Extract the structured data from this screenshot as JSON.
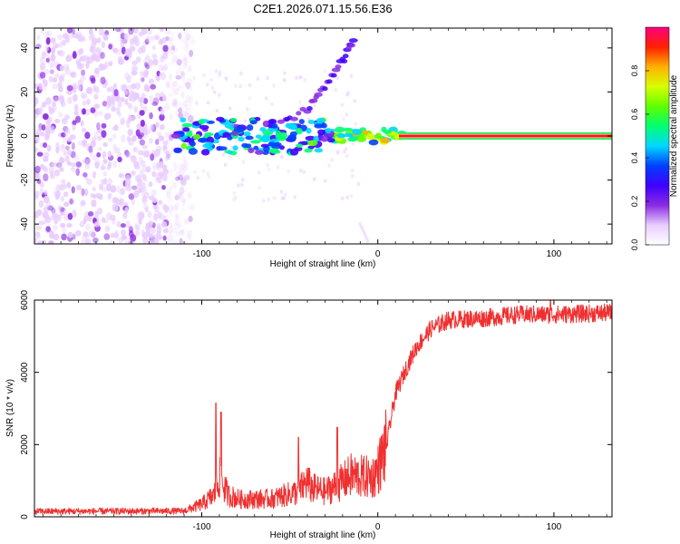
{
  "title": "C2E1.2026.071.15.56.E36",
  "chart_data": [
    {
      "type": "heatmap",
      "name": "spectrogram",
      "xlabel": "Height of straight line (km)",
      "ylabel": "Frequency (Hz)",
      "xlim": [
        -195,
        133
      ],
      "ylim": [
        -49,
        49
      ],
      "xticks": [
        -100,
        0,
        100
      ],
      "xtick_labels": [
        "-100",
        "0",
        "100"
      ],
      "yticks": [
        -40,
        -20,
        0,
        20,
        40
      ],
      "ytick_labels": [
        "-40",
        "-20",
        "0",
        "20",
        "40"
      ],
      "colorbar": {
        "label": "Normalized spectral amplitude",
        "range": [
          0,
          1
        ],
        "ticks": [
          0,
          0.2,
          0.4,
          0.6,
          0.8
        ],
        "tick_labels": [
          "0.0",
          "0.2",
          "0.4",
          "0.6",
          "0.8"
        ],
        "colormap": [
          "#ffffff",
          "#e8ccff",
          "#8a2be2",
          "#3f00ff",
          "#0040ff",
          "#00d8ff",
          "#00ff70",
          "#60ff00",
          "#d8ff00",
          "#ffb000",
          "#ff2000",
          "#ff0080"
        ]
      },
      "features": [
        {
          "name": "noise-region",
          "x_range": [
            -195,
            -105
          ],
          "y_range": [
            -49,
            49
          ],
          "amplitude": 0.12
        },
        {
          "name": "carrier-line",
          "x_range": [
            -115,
            133
          ],
          "y": 0,
          "amplitude": 1.0
        },
        {
          "name": "rising-branch",
          "points": [
            [
              -60,
              3
            ],
            [
              -40,
              12
            ],
            [
              -30,
              22
            ],
            [
              -20,
              34
            ],
            [
              -13,
              44
            ]
          ]
        },
        {
          "name": "falling-branch",
          "points": [
            [
              -10,
              -40
            ],
            [
              -5,
              -49
            ]
          ]
        }
      ]
    },
    {
      "type": "line",
      "name": "snr",
      "xlabel": "Height of straight line (km)",
      "ylabel": "SNR (10 * v/v)",
      "xlim": [
        -195,
        133
      ],
      "ylim": [
        0,
        6000
      ],
      "xticks": [
        -100,
        0,
        100
      ],
      "xtick_labels": [
        "-100",
        "0",
        "100"
      ],
      "yticks": [
        0,
        2000,
        4000,
        6000
      ],
      "ytick_labels": [
        "0",
        "2000",
        "4000",
        "6000"
      ],
      "line_color": "#f03030",
      "trend": {
        "x": [
          -195,
          -110,
          -100,
          -93,
          -90,
          -85,
          -78,
          -60,
          -45,
          -40,
          -38,
          -30,
          -22,
          -15,
          -8,
          -3,
          0,
          5,
          10,
          16,
          22,
          30,
          40,
          60,
          80,
          100,
          133
        ],
        "y": [
          150,
          160,
          350,
          600,
          1100,
          600,
          480,
          500,
          700,
          1000,
          800,
          700,
          900,
          1150,
          1100,
          1100,
          1300,
          2000,
          3400,
          4100,
          4700,
          5200,
          5450,
          5500,
          5600,
          5600,
          5650
        ]
      },
      "spikes": [
        {
          "x": -92,
          "y": 3150
        },
        {
          "x": -89,
          "y": 2900
        },
        {
          "x": -45,
          "y": 2200
        },
        {
          "x": -23,
          "y": 2480
        },
        {
          "x": 98,
          "y": 6000
        }
      ]
    }
  ]
}
